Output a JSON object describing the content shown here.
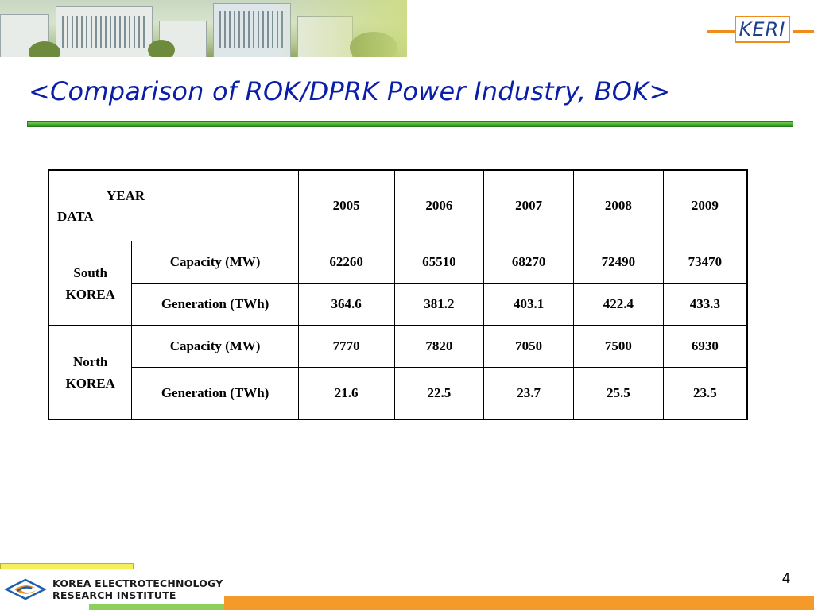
{
  "header": {
    "logo_text": "KERI"
  },
  "title": "<Comparison of ROK/DPRK Power Industry, BOK>",
  "table": {
    "corner_year": "YEAR",
    "corner_data": "DATA",
    "years": [
      "2005",
      "2006",
      "2007",
      "2008",
      "2009"
    ],
    "groups": [
      {
        "country": [
          "South",
          "KOREA"
        ],
        "rows": [
          {
            "metric": "Capacity (MW)",
            "values": [
              "62260",
              "65510",
              "68270",
              "72490",
              "73470"
            ]
          },
          {
            "metric": "Generation (TWh)",
            "values": [
              "364.6",
              "381.2",
              "403.1",
              "422.4",
              "433.3"
            ]
          }
        ]
      },
      {
        "country": [
          "North",
          "KOREA"
        ],
        "rows": [
          {
            "metric": "Capacity (MW)",
            "values": [
              "7770",
              "7820",
              "7050",
              "7500",
              "6930"
            ]
          },
          {
            "metric": "Generation (TWh)",
            "values": [
              "21.6",
              "22.5",
              "23.7",
              "25.5",
              "23.5"
            ]
          }
        ]
      }
    ]
  },
  "footer": {
    "org_line1": "KOREA ELECTROTECHNOLOGY",
    "org_line2": "RESEARCH INSTITUTE",
    "page_number": "4"
  },
  "colors": {
    "title": "#0a1fa8",
    "rule_green": "#3fae2a",
    "accent_orange": "#f08c1c",
    "logo_blue": "#1f3f8c"
  }
}
